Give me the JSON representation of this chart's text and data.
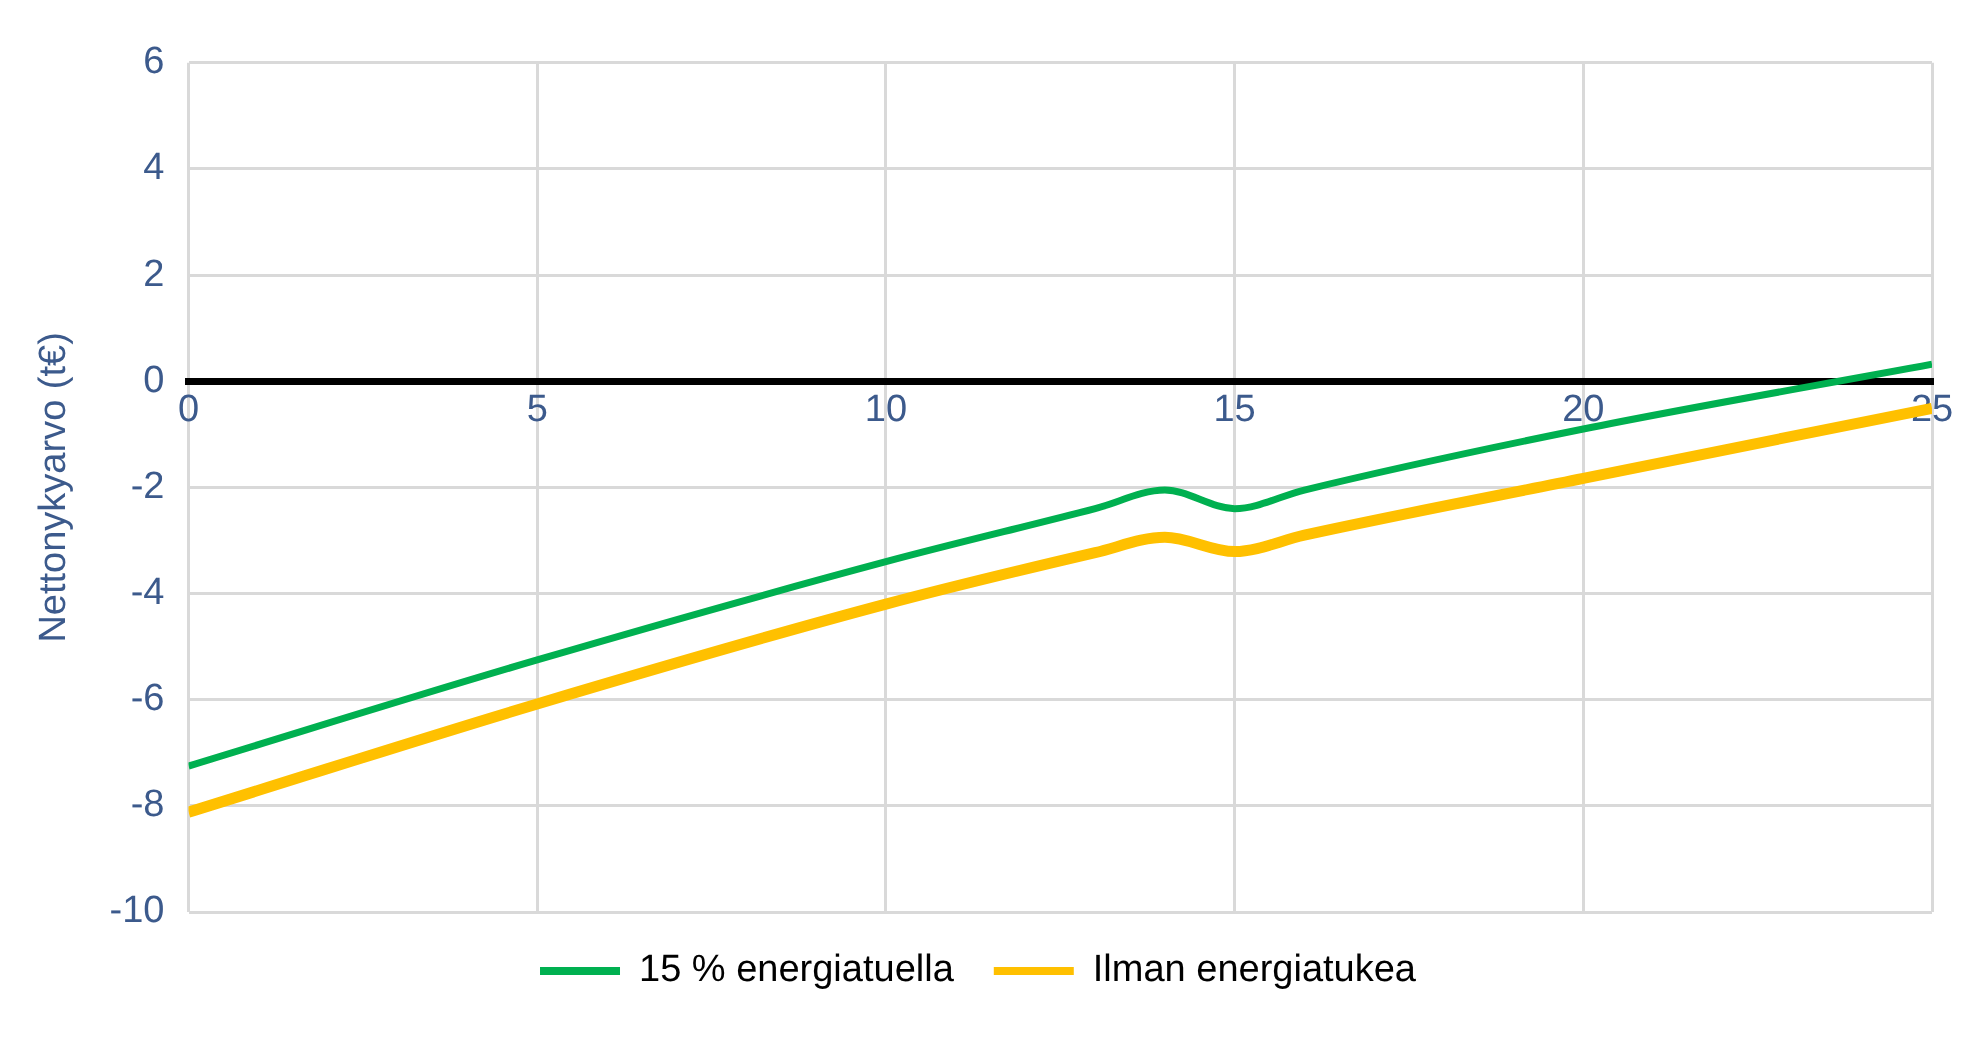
{
  "chart_data": {
    "type": "line",
    "ylabel": "Nettonykyarvo (t€)",
    "xlim": [
      0,
      25
    ],
    "xticks": [
      0,
      5,
      10,
      15,
      20,
      25
    ],
    "ylim": [
      -10,
      6
    ],
    "yticks": [
      -10,
      -8,
      -6,
      -4,
      -2,
      0,
      2,
      4,
      6
    ],
    "grid": true,
    "legend": "bottom",
    "marker": "none",
    "line_style": "solid",
    "series": [
      {
        "name": "15 % energiatuella",
        "color": "#00b050",
        "x": [
          0,
          5,
          10,
          13,
          14,
          15,
          16,
          20,
          25
        ],
        "values": [
          -7.25,
          -5.25,
          -3.4,
          -2.4,
          -2.05,
          -2.4,
          -2.05,
          -0.9,
          0.32
        ]
      },
      {
        "name": "Ilman energiatukea",
        "color": "#ffc000",
        "x": [
          0,
          5,
          10,
          13,
          14,
          15,
          16,
          20,
          25
        ],
        "values": [
          -8.12,
          -6.08,
          -4.2,
          -3.23,
          -2.94,
          -3.21,
          -2.9,
          -1.83,
          -0.51
        ]
      }
    ]
  }
}
